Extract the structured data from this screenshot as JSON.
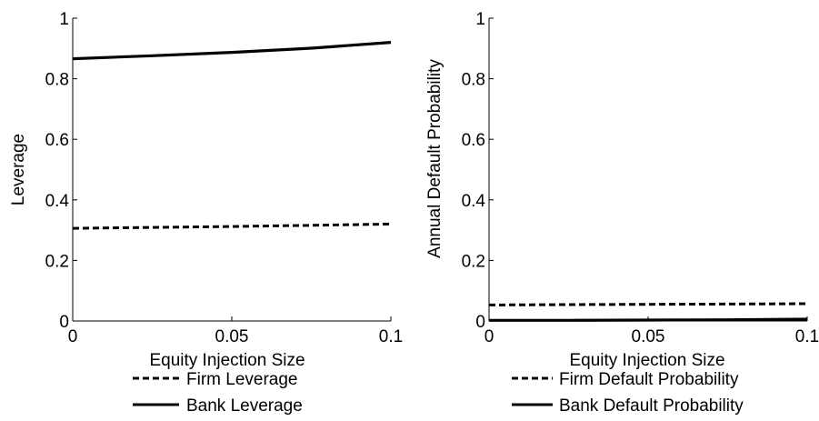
{
  "chart_data": [
    {
      "type": "line",
      "xlabel": "Equity Injection Size",
      "ylabel": "Leverage",
      "xlim": [
        0,
        0.1
      ],
      "ylim": [
        0,
        1
      ],
      "xticks": [
        "0",
        "0.05",
        "0.1"
      ],
      "yticks": [
        "0",
        "0.2",
        "0.4",
        "0.6",
        "0.8",
        "1"
      ],
      "grid": false,
      "legend": "below",
      "x": [
        0,
        0.025,
        0.05,
        0.075,
        0.1
      ],
      "series": [
        {
          "name": "Firm Leverage",
          "style": "dashed",
          "values": [
            0.306,
            0.309,
            0.312,
            0.316,
            0.32
          ]
        },
        {
          "name": "Bank Leverage",
          "style": "solid",
          "values": [
            0.866,
            0.876,
            0.887,
            0.901,
            0.92
          ]
        }
      ]
    },
    {
      "type": "line",
      "xlabel": "Equity Injection Size",
      "ylabel": "Annual Default Probability",
      "xlim": [
        0,
        0.1
      ],
      "ylim": [
        0,
        1
      ],
      "xticks": [
        "0",
        "0.05",
        "0.1"
      ],
      "yticks": [
        "0",
        "0.2",
        "0.4",
        "0.6",
        "0.8",
        "1"
      ],
      "grid": false,
      "legend": "below",
      "x": [
        0,
        0.025,
        0.05,
        0.075,
        0.1
      ],
      "series": [
        {
          "name": "Firm Default Probability",
          "style": "dashed",
          "values": [
            0.053,
            0.054,
            0.055,
            0.056,
            0.057
          ]
        },
        {
          "name": "Bank Default Probability",
          "style": "solid",
          "values": [
            0.002,
            0.002,
            0.003,
            0.004,
            0.006
          ]
        }
      ]
    }
  ]
}
